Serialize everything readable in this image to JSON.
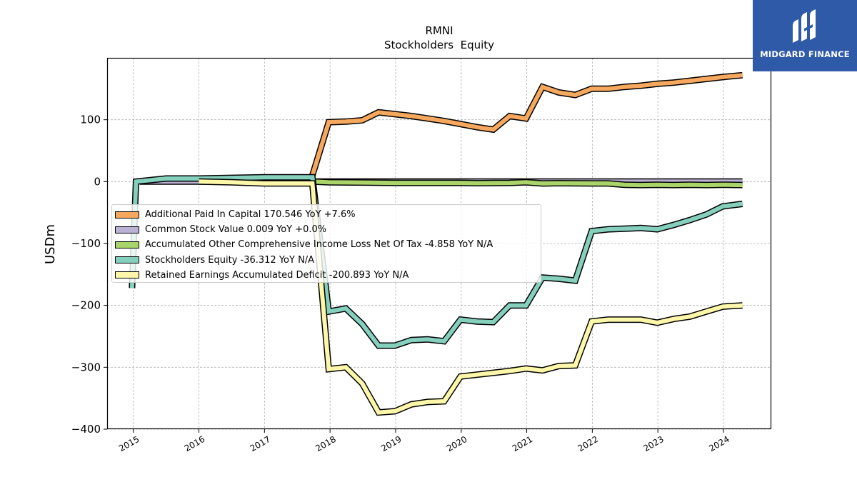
{
  "chart_data": {
    "type": "line",
    "title": "RMNI",
    "subtitle": "Stockholders  Equity",
    "xlabel": "",
    "ylabel": "USDm",
    "ylim": [
      -400,
      200
    ],
    "yticks": [
      100,
      0,
      -100,
      -200,
      -300,
      -400
    ],
    "ytick_labels": [
      "100",
      "0",
      "−100",
      "−200",
      "−300",
      "−400"
    ],
    "xticks": [
      2015,
      2016,
      2017,
      2018,
      2019,
      2020,
      2021,
      2022,
      2023,
      2024
    ],
    "xtick_labels": [
      "2015",
      "2016",
      "2017",
      "2018",
      "2019",
      "2020",
      "2021",
      "2022",
      "2023",
      "2024"
    ],
    "grid": true,
    "legend_position": "center-left",
    "series": [
      {
        "name": "Additional Paid In Capital",
        "legend_label": "Additional Paid In Capital  170.546 YoY +7.6%",
        "color": "#f6a85e",
        "points": [
          [
            2017.73,
            10
          ],
          [
            2017.98,
            96
          ],
          [
            2018.24,
            97
          ],
          [
            2018.49,
            99
          ],
          [
            2018.74,
            112
          ],
          [
            2018.99,
            109
          ],
          [
            2019.24,
            106
          ],
          [
            2019.49,
            102
          ],
          [
            2019.74,
            98
          ],
          [
            2019.99,
            93
          ],
          [
            2020.24,
            88
          ],
          [
            2020.49,
            84
          ],
          [
            2020.74,
            106
          ],
          [
            2020.99,
            102
          ],
          [
            2021.24,
            153
          ],
          [
            2021.49,
            144
          ],
          [
            2021.74,
            140
          ],
          [
            2021.99,
            150
          ],
          [
            2022.24,
            150
          ],
          [
            2022.49,
            153
          ],
          [
            2022.74,
            155
          ],
          [
            2022.99,
            158
          ],
          [
            2023.24,
            160
          ],
          [
            2023.49,
            163
          ],
          [
            2023.74,
            166
          ],
          [
            2023.99,
            169
          ],
          [
            2024.29,
            172
          ]
        ]
      },
      {
        "name": "Common Stock Value",
        "legend_label": "Common Stock Value  0.009 YoY +0.0%",
        "color": "#bcb2d4",
        "points": [
          [
            2015.1,
            0
          ],
          [
            2015.5,
            0
          ],
          [
            2016.0,
            0
          ],
          [
            2016.5,
            0
          ],
          [
            2017.0,
            0
          ],
          [
            2017.5,
            0
          ],
          [
            2017.98,
            0
          ],
          [
            2019.0,
            0
          ],
          [
            2020.0,
            0
          ],
          [
            2021.0,
            0
          ],
          [
            2022.0,
            0
          ],
          [
            2023.0,
            0
          ],
          [
            2024.29,
            0
          ]
        ]
      },
      {
        "name": "Accumulated Other Comprehensive Income Loss Net Of Tax",
        "legend_label": "Accumulated Other Comprehensive Income Loss Net Of Tax  -4.858 YoY N/A",
        "color": "#a8d46a",
        "points": [
          [
            2017.73,
            0
          ],
          [
            2017.98,
            -1
          ],
          [
            2018.49,
            -1.5
          ],
          [
            2018.99,
            -2
          ],
          [
            2019.49,
            -2
          ],
          [
            2019.99,
            -2
          ],
          [
            2020.24,
            -2.5
          ],
          [
            2020.74,
            -2
          ],
          [
            2020.99,
            -1
          ],
          [
            2021.24,
            -3
          ],
          [
            2021.49,
            -2.5
          ],
          [
            2021.99,
            -3
          ],
          [
            2022.24,
            -3
          ],
          [
            2022.49,
            -5
          ],
          [
            2022.74,
            -5.5
          ],
          [
            2022.99,
            -5
          ],
          [
            2023.24,
            -5.5
          ],
          [
            2023.49,
            -5
          ],
          [
            2023.74,
            -5.5
          ],
          [
            2023.99,
            -5
          ],
          [
            2024.29,
            -5.5
          ]
        ]
      },
      {
        "name": "Stockholders Equity",
        "legend_label": "Stockholders Equity  -36.312 YoY N/A",
        "color": "#85cfbd",
        "points": [
          [
            2014.98,
            -172
          ],
          [
            2015.04,
            0
          ],
          [
            2015.5,
            5
          ],
          [
            2016.0,
            5
          ],
          [
            2016.5,
            6
          ],
          [
            2017.0,
            7
          ],
          [
            2017.73,
            7
          ],
          [
            2017.98,
            -210
          ],
          [
            2018.24,
            -205
          ],
          [
            2018.49,
            -230
          ],
          [
            2018.74,
            -265
          ],
          [
            2018.99,
            -265
          ],
          [
            2019.24,
            -256
          ],
          [
            2019.49,
            -255
          ],
          [
            2019.74,
            -258
          ],
          [
            2019.99,
            -223
          ],
          [
            2020.24,
            -226
          ],
          [
            2020.49,
            -227
          ],
          [
            2020.74,
            -200
          ],
          [
            2020.99,
            -200
          ],
          [
            2021.24,
            -155
          ],
          [
            2021.49,
            -157
          ],
          [
            2021.74,
            -160
          ],
          [
            2021.99,
            -80
          ],
          [
            2022.24,
            -77
          ],
          [
            2022.49,
            -76
          ],
          [
            2022.74,
            -75
          ],
          [
            2022.99,
            -77
          ],
          [
            2023.24,
            -70
          ],
          [
            2023.49,
            -62
          ],
          [
            2023.74,
            -53
          ],
          [
            2023.99,
            -40
          ],
          [
            2024.29,
            -36
          ]
        ]
      },
      {
        "name": "Retained Earnings Accumulated Deficit",
        "legend_label": "Retained Earnings Accumulated Deficit  -200.893 YoY N/A",
        "color": "#fdf7aa",
        "points": [
          [
            2016.0,
            0
          ],
          [
            2016.5,
            -1
          ],
          [
            2017.0,
            -3
          ],
          [
            2017.73,
            -3
          ],
          [
            2017.98,
            -303
          ],
          [
            2018.24,
            -300
          ],
          [
            2018.49,
            -326
          ],
          [
            2018.74,
            -373
          ],
          [
            2018.99,
            -371
          ],
          [
            2019.24,
            -360
          ],
          [
            2019.49,
            -356
          ],
          [
            2019.74,
            -355
          ],
          [
            2019.99,
            -315
          ],
          [
            2020.24,
            -312
          ],
          [
            2020.49,
            -309
          ],
          [
            2020.74,
            -306
          ],
          [
            2020.99,
            -302
          ],
          [
            2021.24,
            -305
          ],
          [
            2021.49,
            -298
          ],
          [
            2021.74,
            -297
          ],
          [
            2021.99,
            -226
          ],
          [
            2022.24,
            -223
          ],
          [
            2022.49,
            -223
          ],
          [
            2022.74,
            -223
          ],
          [
            2022.99,
            -228
          ],
          [
            2023.24,
            -222
          ],
          [
            2023.49,
            -218
          ],
          [
            2023.74,
            -210
          ],
          [
            2023.99,
            -202
          ],
          [
            2024.29,
            -200
          ]
        ]
      }
    ]
  },
  "branding": {
    "logo_text": "MIDGARD FINANCE",
    "logo_color": "#2f5aa8"
  }
}
